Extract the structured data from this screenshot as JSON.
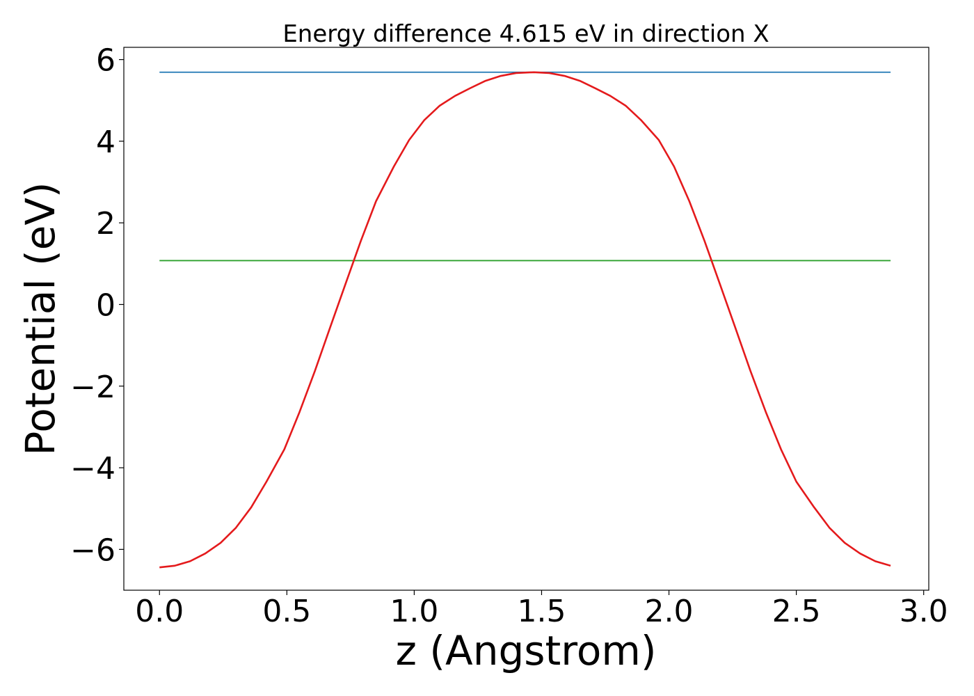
{
  "chart_data": {
    "type": "line",
    "title": "Energy difference 4.615 eV in direction X",
    "xlabel": "z (Angstrom)",
    "ylabel": "Potential (eV)",
    "xlim": [
      -0.14,
      3.02
    ],
    "ylim": [
      -7.0,
      6.3
    ],
    "xticks": [
      0.0,
      0.5,
      1.0,
      1.5,
      2.0,
      2.5,
      3.0
    ],
    "xtick_labels": [
      "0.0",
      "0.5",
      "1.0",
      "1.5",
      "2.0",
      "2.5",
      "3.0"
    ],
    "yticks": [
      -6,
      -4,
      -2,
      0,
      2,
      4,
      6
    ],
    "ytick_labels": [
      "−6",
      "−4",
      "−2",
      "0",
      "2",
      "4",
      "6"
    ],
    "grid": false,
    "series": [
      {
        "color": "#1f77b4",
        "x": [
          0.0,
          2.87
        ],
        "y": [
          5.69,
          5.69
        ]
      },
      {
        "color": "#2ca02c",
        "x": [
          0.0,
          2.87
        ],
        "y": [
          1.075,
          1.075
        ]
      },
      {
        "color": "#e41a1c",
        "x": [
          0.0,
          0.06,
          0.12,
          0.18,
          0.24,
          0.3,
          0.36,
          0.42,
          0.49,
          0.55,
          0.61,
          0.67,
          0.73,
          0.79,
          0.85,
          0.92,
          0.98,
          1.04,
          1.1,
          1.16,
          1.22,
          1.28,
          1.34,
          1.4,
          1.47,
          1.53,
          1.59,
          1.65,
          1.71,
          1.77,
          1.83,
          1.89,
          1.96,
          2.02,
          2.08,
          2.14,
          2.2,
          2.26,
          2.32,
          2.38,
          2.44,
          2.5,
          2.57,
          2.63,
          2.69,
          2.75,
          2.81,
          2.87
        ],
        "y": [
          -6.44,
          -6.4,
          -6.29,
          -6.1,
          -5.84,
          -5.47,
          -4.97,
          -4.34,
          -3.55,
          -2.63,
          -1.63,
          -0.56,
          0.5,
          1.55,
          2.53,
          3.38,
          4.03,
          4.52,
          4.87,
          5.11,
          5.3,
          5.48,
          5.6,
          5.67,
          5.69,
          5.67,
          5.6,
          5.48,
          5.3,
          5.11,
          4.87,
          4.52,
          4.03,
          3.38,
          2.53,
          1.55,
          0.5,
          -0.56,
          -1.63,
          -2.63,
          -3.55,
          -4.34,
          -4.97,
          -5.47,
          -5.84,
          -6.1,
          -6.29,
          -6.4
        ]
      }
    ]
  }
}
